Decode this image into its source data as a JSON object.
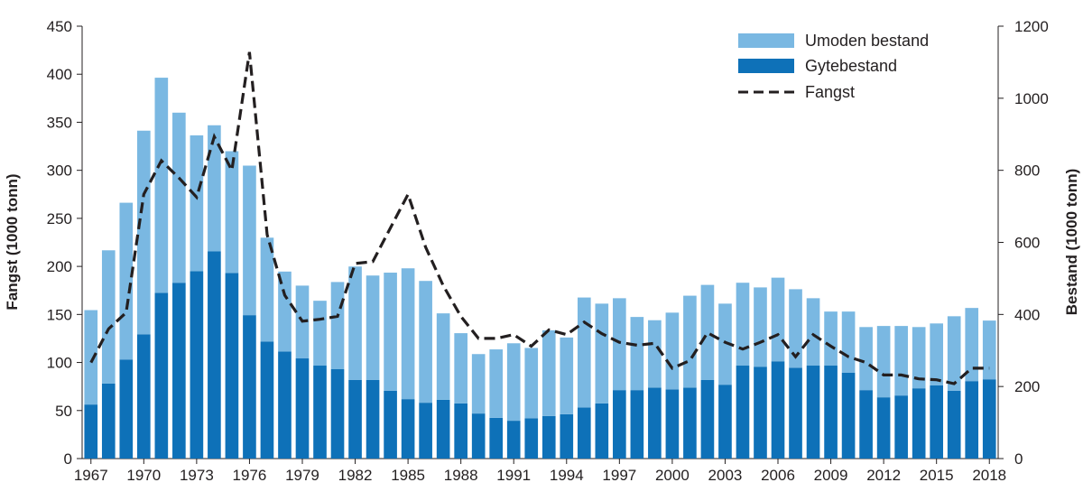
{
  "chart_data": {
    "type": "bar",
    "subtype": "stacked-bar-with-line",
    "title": "",
    "x": [
      1967,
      1968,
      1969,
      1970,
      1971,
      1972,
      1973,
      1974,
      1975,
      1976,
      1977,
      1978,
      1979,
      1980,
      1981,
      1982,
      1983,
      1984,
      1985,
      1986,
      1987,
      1988,
      1989,
      1990,
      1991,
      1992,
      1993,
      1994,
      1995,
      1996,
      1997,
      1998,
      1999,
      2000,
      2001,
      2002,
      2003,
      2004,
      2005,
      2006,
      2007,
      2008,
      2009,
      2010,
      2011,
      2012,
      2013,
      2014,
      2015,
      2016,
      2017,
      2018
    ],
    "x_tick_labels": [
      "1967",
      "1970",
      "1973",
      "1976",
      "1979",
      "1982",
      "1985",
      "1988",
      "1991",
      "1994",
      "1997",
      "2000",
      "2003",
      "2006",
      "2009",
      "2012",
      "2015",
      "2018"
    ],
    "ylabel_left": "Fangst (1000 tonn)",
    "ylabel_right": "Bestand (1000 tonn)",
    "ylim_left": [
      0,
      450
    ],
    "ylim_right": [
      0,
      1200
    ],
    "yticks_left": [
      "0",
      "50",
      "100",
      "150",
      "200",
      "250",
      "300",
      "350",
      "400",
      "450"
    ],
    "yticks_right": [
      "0",
      "200",
      "400",
      "600",
      "800",
      "1000",
      "1200"
    ],
    "series": [
      {
        "name": "Gytebestand",
        "axis": "right",
        "kind": "bar",
        "color": "#0e71b8",
        "values": [
          150,
          208,
          275,
          345,
          460,
          488,
          520,
          575,
          515,
          398,
          325,
          297,
          278,
          258,
          248,
          218,
          218,
          188,
          165,
          155,
          163,
          153,
          125,
          113,
          105,
          112,
          118,
          123,
          142,
          153,
          190,
          190,
          197,
          192,
          197,
          218,
          205,
          258,
          255,
          270,
          252,
          258,
          258,
          238,
          190,
          170,
          175,
          195,
          203,
          188,
          215,
          220
        ]
      },
      {
        "name": "Umoden bestand",
        "axis": "right",
        "kind": "bar",
        "color": "#7ab8e2",
        "values": [
          262,
          370,
          435,
          565,
          597,
          472,
          377,
          350,
          338,
          415,
          288,
          222,
          202,
          180,
          242,
          315,
          290,
          328,
          363,
          338,
          240,
          195,
          165,
          190,
          215,
          195,
          238,
          213,
          305,
          277,
          255,
          203,
          187,
          213,
          255,
          264,
          225,
          230,
          220,
          232,
          218,
          187,
          150,
          170,
          175,
          198,
          193,
          170,
          172,
          207,
          203,
          163
        ]
      },
      {
        "name": "Fangst",
        "axis": "left",
        "kind": "line",
        "style": "dashed",
        "color": "#231f20",
        "values": [
          100,
          135,
          152,
          275,
          310,
          292,
          272,
          335,
          300,
          423,
          233,
          170,
          143,
          145,
          148,
          203,
          205,
          240,
          275,
          220,
          180,
          148,
          125,
          125,
          129,
          117,
          134,
          129,
          142,
          130,
          121,
          118,
          120,
          94,
          102,
          131,
          121,
          114,
          121,
          129,
          106,
          129,
          117,
          106,
          100,
          87,
          87,
          83,
          82,
          78,
          94,
          94
        ]
      }
    ],
    "legend": {
      "position": "top-right",
      "items": [
        "Umoden bestand",
        "Gytebestand",
        "Fangst"
      ]
    }
  }
}
